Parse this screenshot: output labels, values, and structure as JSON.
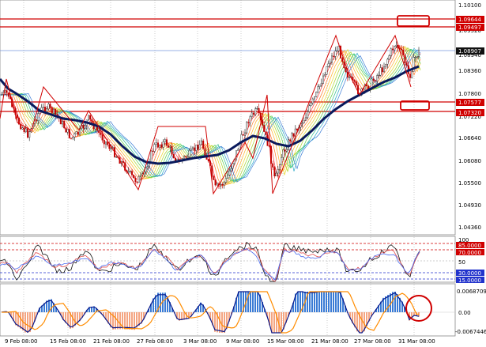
{
  "price_axis": {
    "ticks": [
      "1.10100",
      "1.09520",
      "1.08940",
      "1.08360",
      "1.07800",
      "1.07220",
      "1.06640",
      "1.06080",
      "1.05500",
      "1.04930",
      "1.04360"
    ]
  },
  "price_tags": {
    "top_1": "1.09644",
    "top_2": "1.09497",
    "current": "1.08907",
    "mid_1": "1.07577",
    "mid_2": "1.07320"
  },
  "rsi_axis": {
    "max": "100",
    "tag_85": "85.0000",
    "tag_70": "70.0000",
    "mid": "50",
    "tag_30": "30.0000",
    "tag_15": "15.0000",
    "min": "0"
  },
  "macd_axis": {
    "top": "0.0068709",
    "zero": "0.00",
    "bottom": "-0.0067446"
  },
  "time_axis": {
    "labels": [
      "9 Feb 08:00",
      "15 Feb 08:00",
      "21 Feb 08:00",
      "27 Feb 08:00",
      "3 Mar 08:00",
      "9 Mar 08:00",
      "15 Mar 08:00",
      "21 Mar 08:00",
      "27 Mar 08:00",
      "31 Mar 08:00"
    ]
  },
  "colors": {
    "bull_candle": "#1a1a1a",
    "bear_candle": "#c00000",
    "moving_average": "#0a1a5c",
    "zigzag": "#d00000",
    "horizontal_level": "#d00000",
    "current_price_line": "#7799dd",
    "macd_histogram_positive": "#3a7bd5",
    "macd_histogram_negative": "#f4a582",
    "macd_line": "#0a1a8c",
    "signal_line": "#ff8c00"
  }
}
